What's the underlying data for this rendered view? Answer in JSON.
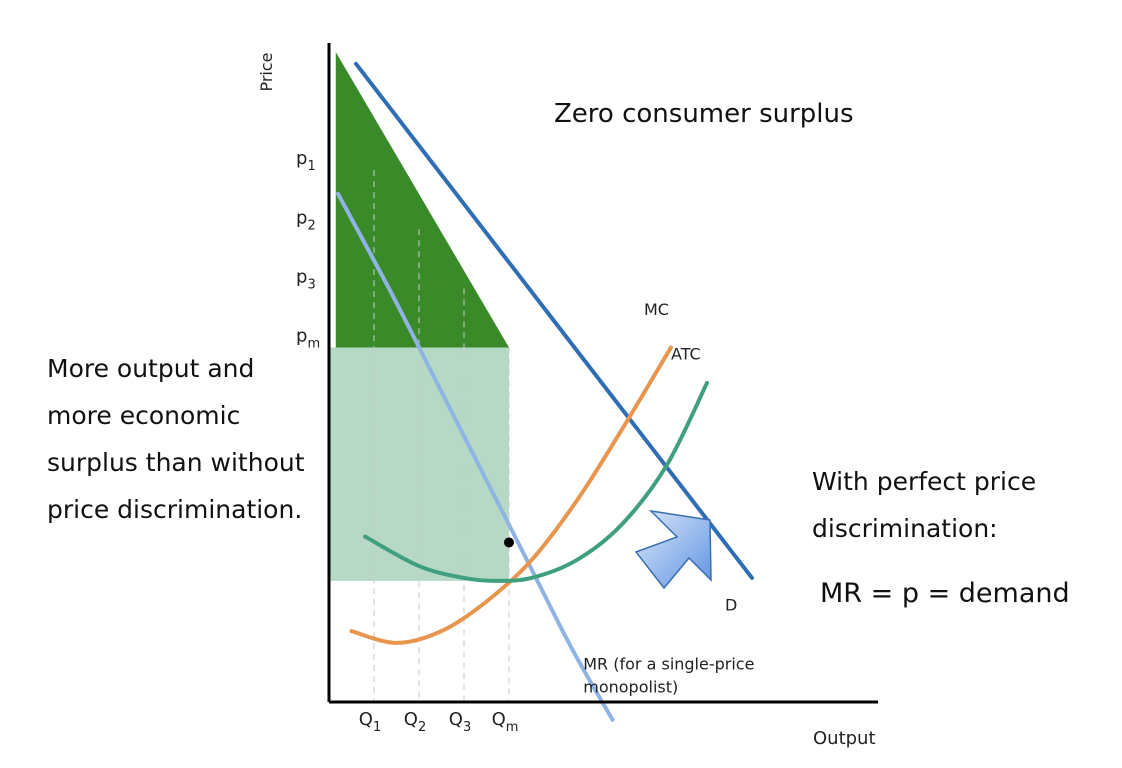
{
  "chart_data": {
    "type": "line",
    "xlabel": "Output",
    "ylabel": "Price",
    "x_ticks": [
      "Q1",
      "Q2",
      "Q3",
      "Qm"
    ],
    "y_ticks": [
      "p1",
      "p2",
      "p3",
      "pm"
    ],
    "x_tick_values": [
      1,
      2,
      3,
      4
    ],
    "y_tick_values": [
      9,
      8,
      7,
      6
    ],
    "xlim": [
      0,
      12
    ],
    "ylim": [
      0,
      11
    ],
    "series": [
      {
        "name": "D",
        "color": "#2f6db5",
        "x": [
          0.6,
          9.4
        ],
        "y": [
          10.8,
          2.1
        ]
      },
      {
        "name": "MR (for a single-price monopolist)",
        "color": "#8fb4e3",
        "x": [
          0.2,
          1.4,
          2.4,
          3.4,
          4.4,
          5.4,
          6.3
        ],
        "y": [
          8.6,
          6.9,
          5.4,
          3.9,
          2.4,
          0.9,
          -0.3
        ]
      },
      {
        "name": "MC",
        "color": "#e8954d",
        "x": [
          0.5,
          1.5,
          2.5,
          3.5,
          4.5,
          5.5,
          6.5,
          7.6
        ],
        "y": [
          1.2,
          1.0,
          1.2,
          1.7,
          2.4,
          3.4,
          4.6,
          6.0
        ]
      },
      {
        "name": "ATC",
        "color": "#3f9f7f",
        "x": [
          0.8,
          2.0,
          3.0,
          3.7,
          4.5,
          5.5,
          6.5,
          7.5,
          8.4
        ],
        "y": [
          2.8,
          2.3,
          2.1,
          2.05,
          2.1,
          2.4,
          3.0,
          4.0,
          5.4
        ]
      }
    ],
    "points": [
      {
        "x": 4,
        "y": 2.7
      }
    ],
    "regions": [
      {
        "name": "economic-profit",
        "color": "#b6d9c6",
        "x": [
          0,
          4
        ],
        "y": [
          2.05,
          6
        ]
      },
      {
        "name": "consumer-surplus-captured",
        "color": "#3a8a2a",
        "x": [
          0,
          4
        ],
        "y": [
          6,
          11
        ]
      }
    ],
    "labels": {
      "D": "D",
      "MC": "MC",
      "ATC": "ATC",
      "MR": [
        "MR (for a single-price",
        "monopolist)"
      ]
    }
  },
  "annotations": {
    "headline": "Zero consumer surplus",
    "left_note": "More output and more economic surplus than without price discrimination.",
    "right_note": "With perfect price discrimination:",
    "right_formula": "MR = p = demand"
  },
  "colors": {
    "arrow_fill": "#7aaaf0",
    "arrow_stroke": "#3a6fb0",
    "axis": "#000000"
  }
}
